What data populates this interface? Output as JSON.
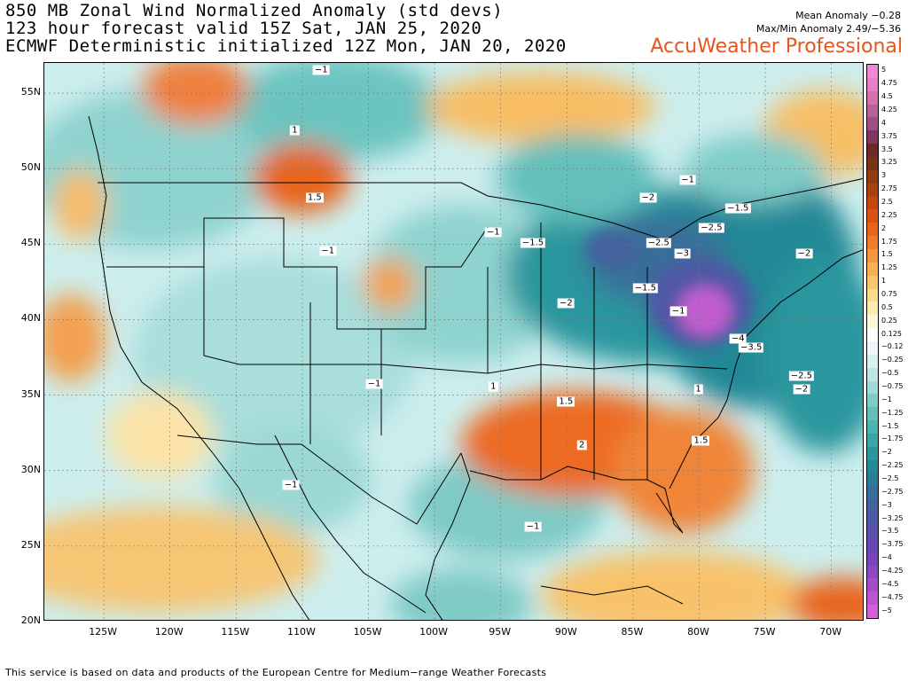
{
  "header": {
    "line1": "850 MB Zonal Wind Normalized Anomaly (std devs)",
    "line2": "123 hour forecast valid 15Z Sat, JAN 25, 2020",
    "line3": "ECMWF Deterministic initialized 12Z Mon, JAN 20, 2020",
    "mean_anomaly": "Mean Anomaly −0.28",
    "maxmin_anomaly": "Max/Min Anomaly 2.49/−5.36",
    "brand": "AccuWeather Professional"
  },
  "axes": {
    "lat_labels": [
      "55N",
      "50N",
      "45N",
      "40N",
      "35N",
      "30N",
      "25N",
      "20N"
    ],
    "lat_values": [
      55,
      50,
      45,
      40,
      35,
      30,
      25,
      20
    ],
    "lon_labels": [
      "125W",
      "120W",
      "115W",
      "110W",
      "105W",
      "100W",
      "95W",
      "90W",
      "85W",
      "80W",
      "75W",
      "70W"
    ],
    "lon_values": [
      -125,
      -120,
      -115,
      -110,
      -105,
      -100,
      -95,
      -90,
      -85,
      -80,
      -75,
      -70
    ],
    "lat_range": [
      20,
      57
    ],
    "lon_range": [
      -129.5,
      -67.5
    ]
  },
  "colorbar": {
    "labels": [
      "5",
      "4.75",
      "4.5",
      "4.25",
      "4",
      "3.75",
      "3.5",
      "3.25",
      "3",
      "2.75",
      "2.5",
      "2.25",
      "2",
      "1.75",
      "1.5",
      "1.25",
      "1",
      "0.75",
      "0.5",
      "0.25",
      "0.125",
      "−0.12",
      "−0.25",
      "−0.5",
      "−0.75",
      "−1",
      "−1.25",
      "−1.5",
      "−1.75",
      "−2",
      "−2.25",
      "−2.5",
      "−2.75",
      "−3",
      "−3.25",
      "−3.5",
      "−3.75",
      "−4",
      "−4.25",
      "−4.5",
      "−4.75",
      "−5"
    ],
    "colors": [
      "#f08ad8",
      "#e87ec8",
      "#d271ad",
      "#b9629a",
      "#9c4f86",
      "#7e3a5e",
      "#6a2a2a",
      "#7a3414",
      "#8f3c0e",
      "#a9420d",
      "#c5470f",
      "#dc5113",
      "#ea6418",
      "#f07b28",
      "#f5963a",
      "#f8b050",
      "#fbc869",
      "#fcdc8a",
      "#fdecb2",
      "#fdf6d8",
      "#ffffff",
      "#eef8f8",
      "#d8f0ef",
      "#bde6e3",
      "#a0dad6",
      "#80cdc8",
      "#63c0bb",
      "#4cb3b0",
      "#3aa5a7",
      "#2c969e",
      "#248896",
      "#2a7b94",
      "#386e99",
      "#44629f",
      "#4f58a6",
      "#5a50ad",
      "#6848b4",
      "#7a44bb",
      "#8f46c3",
      "#a64cca",
      "#bb55d0",
      "#d060d6"
    ]
  },
  "chart_data": {
    "type": "heatmap",
    "variable": "850 MB Zonal Wind Normalized Anomaly",
    "units": "std devs",
    "mean_anomaly": -0.28,
    "max_anomaly": 2.49,
    "min_anomaly": -5.36,
    "contour_labels": [
      {
        "text": "1",
        "lon": -110.5,
        "lat": 52.5
      },
      {
        "text": "−1",
        "lon": -108.5,
        "lat": 56.5
      },
      {
        "text": "1.5",
        "lon": -109.0,
        "lat": 48.0
      },
      {
        "text": "−1",
        "lon": -108.0,
        "lat": 44.5
      },
      {
        "text": "−1",
        "lon": -95.5,
        "lat": 45.7
      },
      {
        "text": "−1.5",
        "lon": -92.5,
        "lat": 45.0
      },
      {
        "text": "−2",
        "lon": -83.8,
        "lat": 48.0
      },
      {
        "text": "−1",
        "lon": -80.8,
        "lat": 49.2
      },
      {
        "text": "−1.5",
        "lon": -77.0,
        "lat": 47.3
      },
      {
        "text": "−2.5",
        "lon": -79.0,
        "lat": 46.0
      },
      {
        "text": "−2.5",
        "lon": -83.0,
        "lat": 45.0
      },
      {
        "text": "−3",
        "lon": -81.2,
        "lat": 44.3
      },
      {
        "text": "−1.5",
        "lon": -84.0,
        "lat": 42.0
      },
      {
        "text": "−1",
        "lon": -81.5,
        "lat": 40.5
      },
      {
        "text": "−2",
        "lon": -90.0,
        "lat": 41.0
      },
      {
        "text": "−2",
        "lon": -72.0,
        "lat": 44.3
      },
      {
        "text": "−4",
        "lon": -77.0,
        "lat": 38.7
      },
      {
        "text": "−3.5",
        "lon": -76.0,
        "lat": 38.1
      },
      {
        "text": "−2.5",
        "lon": -72.2,
        "lat": 36.2
      },
      {
        "text": "−2",
        "lon": -72.2,
        "lat": 35.3
      },
      {
        "text": "−1",
        "lon": -104.5,
        "lat": 35.7
      },
      {
        "text": "1",
        "lon": -95.5,
        "lat": 35.5
      },
      {
        "text": "1.5",
        "lon": -90.0,
        "lat": 34.5
      },
      {
        "text": "1",
        "lon": -80.0,
        "lat": 35.3
      },
      {
        "text": "2",
        "lon": -88.8,
        "lat": 31.6
      },
      {
        "text": "1.5",
        "lon": -79.8,
        "lat": 31.9
      },
      {
        "text": "−1",
        "lon": -110.8,
        "lat": 29.0
      },
      {
        "text": "−1",
        "lon": -92.5,
        "lat": 26.2
      }
    ]
  },
  "footer": {
    "text": "This service is based on data and products of the European Centre for Medium−range Weather Forecasts"
  }
}
